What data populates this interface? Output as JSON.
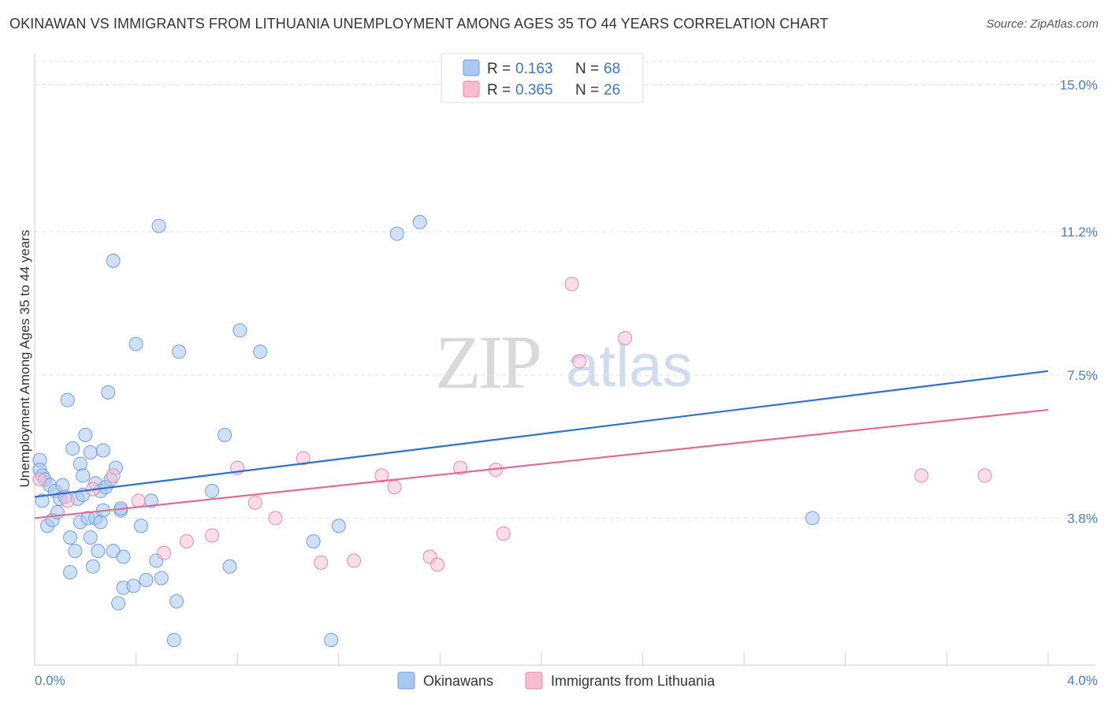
{
  "title": "OKINAWAN VS IMMIGRANTS FROM LITHUANIA UNEMPLOYMENT AMONG AGES 35 TO 44 YEARS CORRELATION CHART",
  "source": "Source: ZipAtlas.com",
  "watermark": {
    "zip": "ZIP",
    "atlas": "atlas"
  },
  "legend": {
    "r_label": "R =",
    "n_label": "N =",
    "rows": [
      {
        "r": "0.163",
        "n": "68"
      },
      {
        "r": "0.365",
        "n": "26"
      }
    ]
  },
  "colors": {
    "series1_fill": "#a9c8f0",
    "series1_stroke": "#6f9fdc",
    "series1_line": "#2f6fd0",
    "series2_fill": "#f7bcd0",
    "series2_stroke": "#e88aa8",
    "series2_line": "#e06c92"
  },
  "chart_data": {
    "type": "scatter",
    "title": "OKINAWAN VS IMMIGRANTS FROM LITHUANIA UNEMPLOYMENT AMONG AGES 35 TO 44 YEARS CORRELATION CHART",
    "xlabel": "",
    "ylabel": "Unemployment Among Ages 35 to 44 years",
    "xlim": [
      0,
      4.2
    ],
    "ylim": [
      0,
      15.5
    ],
    "x_tick_labels": [
      "0.0%",
      "4.0%"
    ],
    "y_ticks": [
      3.8,
      7.5,
      11.2,
      15.0
    ],
    "y_tick_labels": [
      "3.8%",
      "7.5%",
      "11.2%",
      "15.0%"
    ],
    "grid": true,
    "legend_position": "top-center",
    "series": [
      {
        "name": "Okinawans",
        "r": 0.163,
        "n": 68,
        "trend": [
          [
            0.0,
            4.35
          ],
          [
            4.0,
            7.6
          ]
        ],
        "points": [
          [
            0.02,
            5.3
          ],
          [
            0.02,
            5.05
          ],
          [
            0.03,
            4.9
          ],
          [
            0.03,
            4.25
          ],
          [
            0.04,
            4.8
          ],
          [
            0.05,
            3.6
          ],
          [
            0.06,
            4.65
          ],
          [
            0.07,
            3.75
          ],
          [
            0.08,
            4.5
          ],
          [
            0.09,
            3.95
          ],
          [
            0.1,
            4.3
          ],
          [
            0.11,
            4.65
          ],
          [
            0.12,
            4.35
          ],
          [
            0.13,
            6.85
          ],
          [
            0.14,
            3.3
          ],
          [
            0.14,
            2.4
          ],
          [
            0.15,
            5.6
          ],
          [
            0.16,
            2.95
          ],
          [
            0.17,
            4.3
          ],
          [
            0.18,
            3.7
          ],
          [
            0.18,
            5.2
          ],
          [
            0.19,
            4.4
          ],
          [
            0.19,
            4.9
          ],
          [
            0.2,
            5.95
          ],
          [
            0.21,
            3.8
          ],
          [
            0.22,
            3.3
          ],
          [
            0.22,
            5.5
          ],
          [
            0.23,
            2.55
          ],
          [
            0.24,
            4.7
          ],
          [
            0.24,
            3.8
          ],
          [
            0.25,
            2.95
          ],
          [
            0.26,
            3.7
          ],
          [
            0.26,
            4.5
          ],
          [
            0.27,
            5.55
          ],
          [
            0.27,
            4.0
          ],
          [
            0.28,
            4.6
          ],
          [
            0.29,
            7.05
          ],
          [
            0.3,
            4.8
          ],
          [
            0.31,
            10.45
          ],
          [
            0.31,
            2.95
          ],
          [
            0.32,
            5.1
          ],
          [
            0.33,
            1.6
          ],
          [
            0.34,
            4.0
          ],
          [
            0.34,
            4.05
          ],
          [
            0.35,
            2.8
          ],
          [
            0.35,
            2.0
          ],
          [
            0.39,
            2.05
          ],
          [
            0.4,
            8.3
          ],
          [
            0.42,
            3.6
          ],
          [
            0.44,
            2.2
          ],
          [
            0.46,
            4.25
          ],
          [
            0.48,
            2.7
          ],
          [
            0.49,
            11.35
          ],
          [
            0.5,
            2.25
          ],
          [
            0.55,
            0.65
          ],
          [
            0.56,
            1.65
          ],
          [
            0.57,
            8.1
          ],
          [
            0.7,
            4.5
          ],
          [
            0.75,
            5.95
          ],
          [
            0.77,
            2.55
          ],
          [
            0.81,
            8.65
          ],
          [
            0.89,
            8.1
          ],
          [
            1.1,
            3.2
          ],
          [
            1.17,
            0.65
          ],
          [
            1.2,
            3.6
          ],
          [
            1.43,
            11.15
          ],
          [
            1.52,
            11.45
          ],
          [
            3.07,
            3.8
          ]
        ]
      },
      {
        "name": "Immigrants from Lithuania",
        "r": 0.365,
        "n": 26,
        "trend": [
          [
            0.0,
            3.8
          ],
          [
            4.0,
            6.6
          ]
        ],
        "points": [
          [
            0.02,
            4.8
          ],
          [
            0.13,
            4.25
          ],
          [
            0.23,
            4.55
          ],
          [
            0.31,
            4.9
          ],
          [
            0.41,
            4.25
          ],
          [
            0.51,
            2.9
          ],
          [
            0.6,
            3.2
          ],
          [
            0.7,
            3.35
          ],
          [
            0.8,
            5.1
          ],
          [
            0.87,
            4.2
          ],
          [
            0.95,
            3.8
          ],
          [
            1.06,
            5.35
          ],
          [
            1.13,
            2.65
          ],
          [
            1.26,
            2.7
          ],
          [
            1.37,
            4.9
          ],
          [
            1.42,
            4.6
          ],
          [
            1.56,
            2.8
          ],
          [
            1.59,
            2.6
          ],
          [
            1.68,
            5.1
          ],
          [
            1.82,
            5.05
          ],
          [
            1.85,
            3.4
          ],
          [
            2.12,
            9.85
          ],
          [
            2.15,
            7.85
          ],
          [
            2.33,
            8.45
          ],
          [
            3.5,
            4.9
          ],
          [
            3.75,
            4.9
          ]
        ]
      }
    ]
  }
}
